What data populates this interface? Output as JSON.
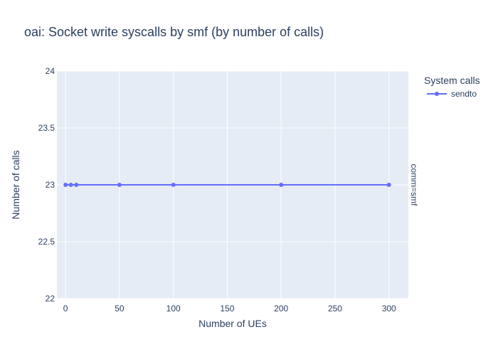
{
  "chart_data": {
    "type": "line",
    "title": "oai: Socket write syscalls by smf (by number of calls)",
    "xlabel": "Number of UEs",
    "ylabel": "Number of calls",
    "xlim": [
      -8,
      318
    ],
    "ylim": [
      22,
      24
    ],
    "x_ticks": [
      0,
      50,
      100,
      150,
      200,
      250,
      300
    ],
    "y_ticks": [
      22,
      22.5,
      23,
      23.5,
      24
    ],
    "x_tick_labels": [
      "0",
      "50",
      "100",
      "150",
      "200",
      "250",
      "300"
    ],
    "y_tick_labels": [
      "22",
      "22.5",
      "23",
      "23.5",
      "24"
    ],
    "grid": true,
    "legend": {
      "title": "System calls",
      "placement": "top-right, outside plot"
    },
    "facet_label": "comm=smf",
    "series": [
      {
        "name": "sendto",
        "color": "#636efa",
        "x": [
          0,
          5,
          10,
          50,
          100,
          200,
          300
        ],
        "y": [
          23,
          23,
          23,
          23,
          23,
          23,
          23
        ]
      }
    ]
  }
}
